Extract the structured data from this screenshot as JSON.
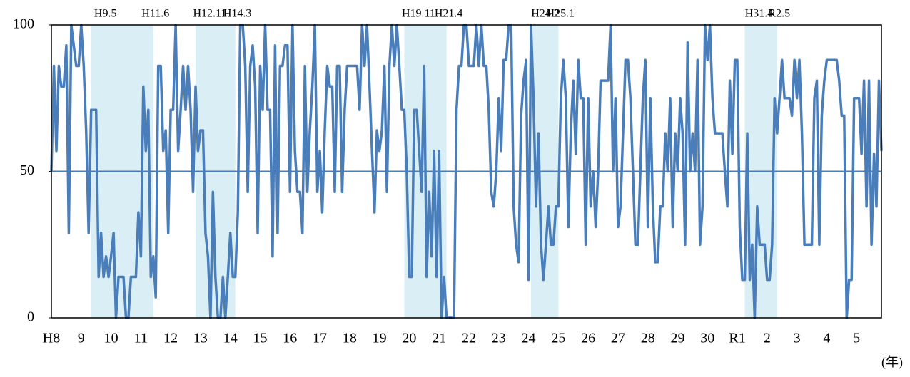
{
  "chart_data": {
    "type": "line",
    "categories": [
      "H8",
      null,
      null,
      null,
      null,
      null,
      null,
      null,
      null,
      null,
      null,
      null,
      "9",
      null,
      null,
      null,
      null,
      null,
      null,
      null,
      null,
      null,
      null,
      null,
      "10",
      null,
      null,
      null,
      null,
      null,
      null,
      null,
      null,
      null,
      null,
      null,
      "11",
      null,
      null,
      null,
      null,
      null,
      null,
      null,
      null,
      null,
      null,
      null,
      "12",
      null,
      null,
      null,
      null,
      null,
      null,
      null,
      null,
      null,
      null,
      null,
      "13",
      null,
      null,
      null,
      null,
      null,
      null,
      null,
      null,
      null,
      null,
      null,
      "14",
      null,
      null,
      null,
      null,
      null,
      null,
      null,
      null,
      null,
      null,
      null,
      "15",
      null,
      null,
      null,
      null,
      null,
      null,
      null,
      null,
      null,
      null,
      null,
      "16",
      null,
      null,
      null,
      null,
      null,
      null,
      null,
      null,
      null,
      null,
      null,
      "17",
      null,
      null,
      null,
      null,
      null,
      null,
      null,
      null,
      null,
      null,
      null,
      "18",
      null,
      null,
      null,
      null,
      null,
      null,
      null,
      null,
      null,
      null,
      null,
      "19",
      null,
      null,
      null,
      null,
      null,
      null,
      null,
      null,
      null,
      null,
      null,
      "20",
      null,
      null,
      null,
      null,
      null,
      null,
      null,
      null,
      null,
      null,
      null,
      "21",
      null,
      null,
      null,
      null,
      null,
      null,
      null,
      null,
      null,
      null,
      null,
      "22",
      null,
      null,
      null,
      null,
      null,
      null,
      null,
      null,
      null,
      null,
      null,
      "23",
      null,
      null,
      null,
      null,
      null,
      null,
      null,
      null,
      null,
      null,
      null,
      "24",
      null,
      null,
      null,
      null,
      null,
      null,
      null,
      null,
      null,
      null,
      null,
      "25",
      null,
      null,
      null,
      null,
      null,
      null,
      null,
      null,
      null,
      null,
      null,
      "26",
      null,
      null,
      null,
      null,
      null,
      null,
      null,
      null,
      null,
      null,
      null,
      "27",
      null,
      null,
      null,
      null,
      null,
      null,
      null,
      null,
      null,
      null,
      null,
      "28",
      null,
      null,
      null,
      null,
      null,
      null,
      null,
      null,
      null,
      null,
      null,
      "29",
      null,
      null,
      null,
      null,
      null,
      null,
      null,
      null,
      null,
      null,
      null,
      "30",
      null,
      null,
      null,
      null,
      null,
      null,
      null,
      null,
      null,
      null,
      null,
      "R1",
      null,
      null,
      null,
      null,
      null,
      null,
      null,
      null,
      null,
      null,
      null,
      "2",
      null,
      null,
      null,
      null,
      null,
      null,
      null,
      null,
      null,
      null,
      null,
      "3",
      null,
      null,
      null,
      null,
      null,
      null,
      null,
      null,
      null,
      null,
      null,
      "4",
      null,
      null,
      null,
      null,
      null,
      null,
      null,
      null,
      null,
      null,
      null,
      "5",
      null,
      null,
      null,
      null,
      null,
      null,
      null,
      null,
      null,
      null
    ],
    "values": [
      50,
      86,
      57,
      86,
      79,
      79,
      93,
      29,
      100,
      93,
      86,
      86,
      100,
      86,
      64,
      29,
      71,
      71,
      71,
      14,
      29,
      14,
      21,
      14,
      21,
      29,
      0,
      14,
      14,
      14,
      0,
      0,
      14,
      14,
      14,
      36,
      21,
      79,
      57,
      71,
      14,
      21,
      7,
      86,
      86,
      57,
      64,
      29,
      71,
      71,
      100,
      57,
      71,
      86,
      71,
      86,
      71,
      43,
      79,
      57,
      64,
      64,
      29,
      21,
      0,
      43,
      14,
      0,
      0,
      14,
      0,
      14,
      29,
      14,
      14,
      36,
      100,
      100,
      86,
      43,
      86,
      93,
      79,
      29,
      86,
      71,
      100,
      71,
      71,
      21,
      93,
      29,
      86,
      86,
      93,
      93,
      43,
      100,
      57,
      43,
      43,
      29,
      86,
      43,
      64,
      79,
      100,
      43,
      57,
      36,
      64,
      86,
      79,
      79,
      43,
      86,
      86,
      43,
      71,
      86,
      86,
      86,
      86,
      86,
      71,
      100,
      86,
      100,
      79,
      57,
      36,
      64,
      57,
      64,
      86,
      43,
      86,
      100,
      86,
      100,
      86,
      71,
      71,
      50,
      14,
      14,
      71,
      71,
      57,
      43,
      86,
      14,
      43,
      21,
      57,
      14,
      57,
      0,
      14,
      0,
      0,
      0,
      0,
      71,
      86,
      86,
      100,
      100,
      86,
      86,
      86,
      100,
      86,
      100,
      86,
      86,
      71,
      43,
      38,
      50,
      75,
      57,
      88,
      88,
      100,
      100,
      38,
      25,
      19,
      69,
      81,
      88,
      13,
      100,
      75,
      38,
      63,
      25,
      13,
      25,
      38,
      25,
      25,
      38,
      38,
      75,
      88,
      75,
      31,
      63,
      81,
      56,
      88,
      75,
      75,
      25,
      75,
      38,
      50,
      31,
      50,
      81,
      81,
      81,
      81,
      100,
      50,
      75,
      31,
      38,
      63,
      88,
      88,
      75,
      50,
      25,
      25,
      50,
      75,
      88,
      31,
      75,
      38,
      19,
      19,
      38,
      38,
      63,
      50,
      75,
      31,
      63,
      50,
      75,
      63,
      25,
      94,
      50,
      63,
      50,
      88,
      25,
      38,
      100,
      88,
      100,
      75,
      63,
      63,
      63,
      63,
      50,
      38,
      81,
      56,
      88,
      88,
      31,
      13,
      13,
      63,
      13,
      25,
      0,
      38,
      25,
      25,
      25,
      13,
      13,
      25,
      75,
      63,
      75,
      88,
      75,
      75,
      75,
      69,
      88,
      75,
      88,
      63,
      25,
      25,
      25,
      25,
      75,
      81,
      25,
      69,
      81,
      88,
      88,
      88,
      88,
      88,
      81,
      69,
      69,
      0,
      13,
      13,
      75,
      75,
      75,
      56,
      81,
      38,
      81,
      25,
      56,
      38,
      81,
      57
    ],
    "color": "#4a7ebb",
    "ylim": [
      0,
      100
    ],
    "yticks": [
      0,
      50,
      100
    ],
    "reference_line": 50,
    "shaded_periods": [
      [
        "H9.5",
        "H11.6"
      ],
      [
        "H12.11",
        "H14.3"
      ],
      [
        "H19.11",
        "H21.4"
      ],
      [
        "H24.2",
        "H25.1"
      ],
      [
        "H31.4",
        "R2.5"
      ]
    ],
    "shade_color": "#daeef5",
    "x_unit": "(年)"
  }
}
